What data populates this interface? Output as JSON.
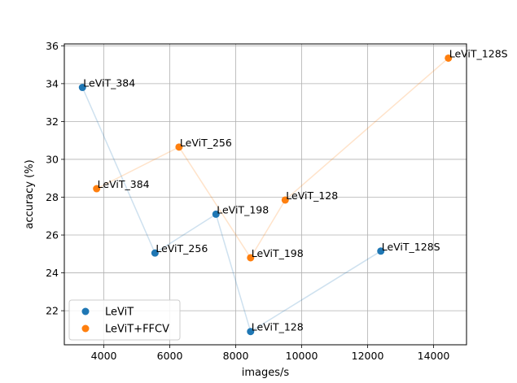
{
  "chart_data": {
    "type": "scatter",
    "title": "",
    "xlabel": "images/s",
    "ylabel": "accuracy (%)",
    "xlim": [
      2800,
      15000
    ],
    "ylim": [
      20.2,
      36.1
    ],
    "xticks": [
      4000,
      6000,
      8000,
      10000,
      12000,
      14000
    ],
    "yticks": [
      22,
      24,
      26,
      28,
      30,
      32,
      34,
      36
    ],
    "grid": true,
    "legend_position": "lower-left",
    "series": [
      {
        "name": "LeViT",
        "color": "#1f77b4",
        "points": [
          {
            "label": "LeViT_384",
            "x": 3350,
            "y": 33.8
          },
          {
            "label": "LeViT_256",
            "x": 5550,
            "y": 25.05
          },
          {
            "label": "LeViT_198",
            "x": 7400,
            "y": 27.1
          },
          {
            "label": "LeViT_128",
            "x": 8450,
            "y": 20.9
          },
          {
            "label": "LeViT_128S",
            "x": 12400,
            "y": 25.15
          }
        ]
      },
      {
        "name": "LeViT+FFCV",
        "color": "#ff7f0e",
        "points": [
          {
            "label": "LeViT_384",
            "x": 3780,
            "y": 28.45
          },
          {
            "label": "LeViT_256",
            "x": 6280,
            "y": 30.65
          },
          {
            "label": "LeViT_198",
            "x": 8450,
            "y": 24.8
          },
          {
            "label": "LeViT_128",
            "x": 9500,
            "y": 27.85
          },
          {
            "label": "LeViT_128S",
            "x": 14450,
            "y": 35.35
          }
        ]
      }
    ]
  }
}
